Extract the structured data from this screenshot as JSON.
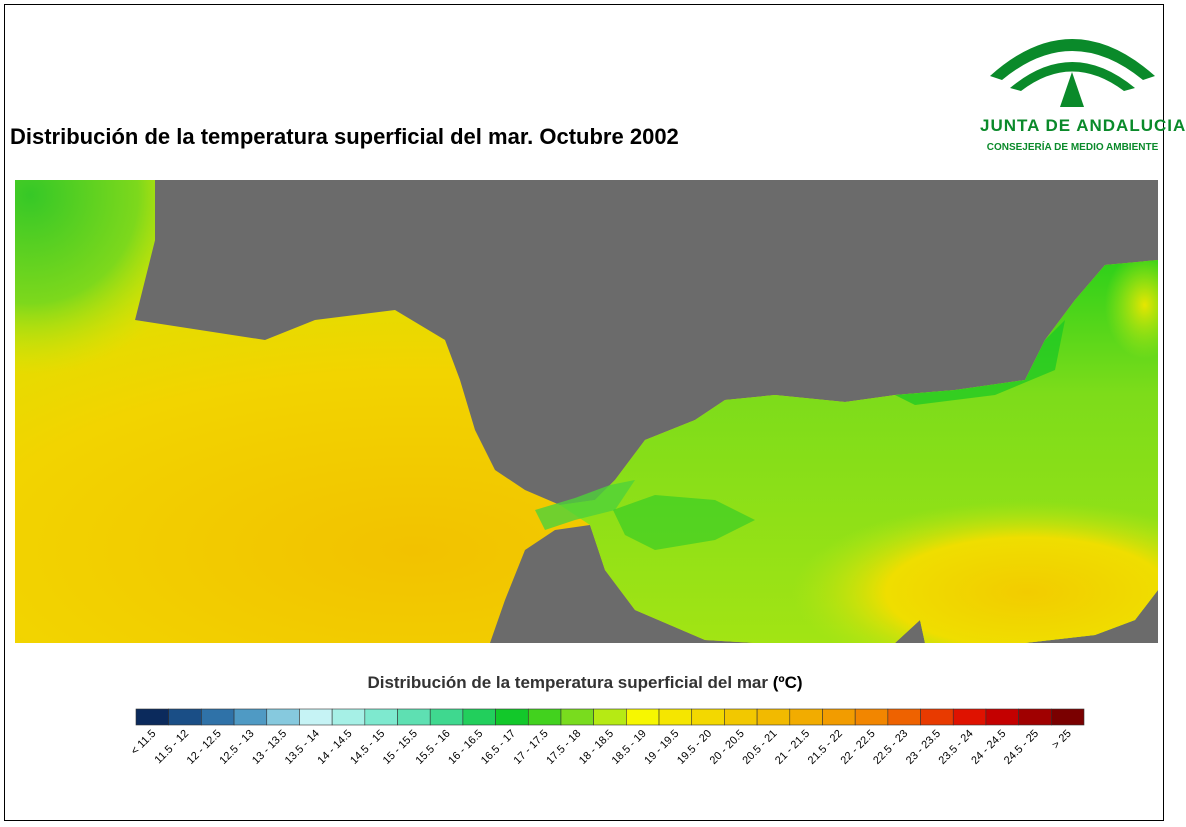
{
  "title": "Distribución de la temperatura superficial del mar. Octubre 2002",
  "logo": {
    "line1": "JUNTA DE ANDALUCIA",
    "line2": "CONSEJERÍA DE MEDIO AMBIENTE",
    "color": "#0a8a2a"
  },
  "map": {
    "land_color": "#6b6b6b"
  },
  "legend": {
    "title": "Distribución de la temperatura superficial del mar",
    "unit": "(ºC)",
    "classes": [
      {
        "label": "< 11.5",
        "color": "#0b2a5c"
      },
      {
        "label": "11.5 - 12",
        "color": "#1a4e86"
      },
      {
        "label": "12 - 12.5",
        "color": "#2f72a8"
      },
      {
        "label": "12.5 - 13",
        "color": "#4f9ac4"
      },
      {
        "label": "13 - 13.5",
        "color": "#86c9de"
      },
      {
        "label": "13.5 - 14",
        "color": "#c6f3f5"
      },
      {
        "label": "14 - 14.5",
        "color": "#a6f0e6"
      },
      {
        "label": "14.5 - 15",
        "color": "#7ee9cf"
      },
      {
        "label": "15 - 15.5",
        "color": "#5ee0b2"
      },
      {
        "label": "15.5 - 16",
        "color": "#3fd88f"
      },
      {
        "label": "16 - 16.5",
        "color": "#22cf5c"
      },
      {
        "label": "16.5 - 17",
        "color": "#12c82a"
      },
      {
        "label": "17 - 17.5",
        "color": "#42d21e"
      },
      {
        "label": "17.5 - 18",
        "color": "#79dc1e"
      },
      {
        "label": "18 - 18.5",
        "color": "#b6ea14"
      },
      {
        "label": "18.5 - 19",
        "color": "#f7f700"
      },
      {
        "label": "19 - 19.5",
        "color": "#f5e600"
      },
      {
        "label": "19.5 - 20",
        "color": "#f3d800"
      },
      {
        "label": "20 - 20.5",
        "color": "#f2c800"
      },
      {
        "label": "20.5 - 21",
        "color": "#f2ba00"
      },
      {
        "label": "21 - 21.5",
        "color": "#f2ac00"
      },
      {
        "label": "21.5 - 22",
        "color": "#f29c00"
      },
      {
        "label": "22 - 22.5",
        "color": "#f28600"
      },
      {
        "label": "22.5 - 23",
        "color": "#ee6200"
      },
      {
        "label": "23 - 23.5",
        "color": "#e83a00"
      },
      {
        "label": "23.5 - 24",
        "color": "#df1200"
      },
      {
        "label": "24 - 24.5",
        "color": "#c40000"
      },
      {
        "label": "24.5 - 25",
        "color": "#a00000"
      },
      {
        "label": "> 25",
        "color": "#7a0000"
      }
    ]
  }
}
